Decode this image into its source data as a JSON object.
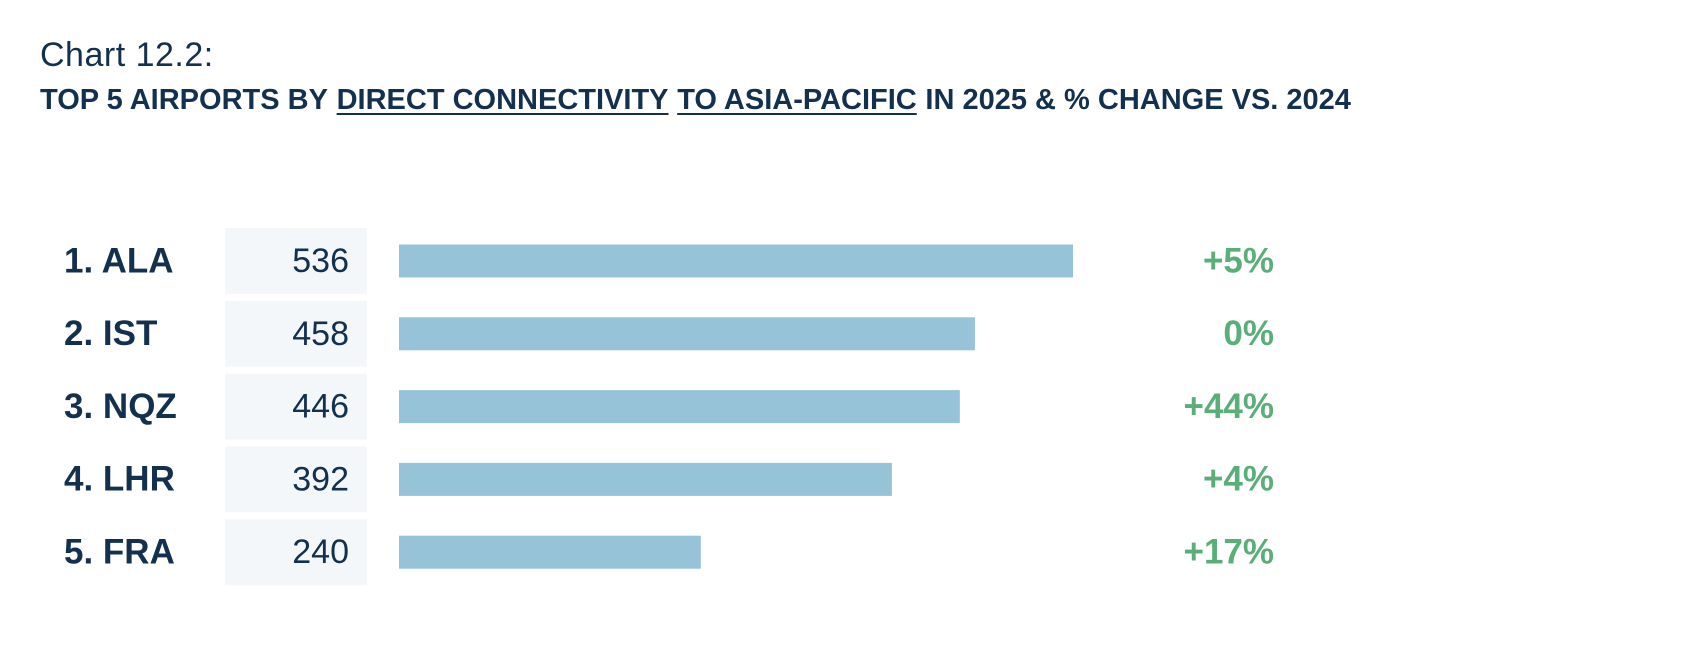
{
  "chart_data": {
    "type": "bar",
    "label": "Chart 12.2:",
    "title": [
      {
        "text": "TOP 5 AIRPORTS BY"
      },
      {
        "text": "DIRECT CONNECTIVITY",
        "underline": true
      },
      {
        "text": "TO ASIA-PACIFIC",
        "underline": true
      },
      {
        "text": "IN 2025 & % CHANGE VS. 2024"
      }
    ],
    "categories": [
      "1. ALA",
      "2. IST",
      "3. NQZ",
      "4. LHR",
      "5. FRA"
    ],
    "values": [
      536,
      458,
      446,
      392,
      240
    ],
    "color": "#97c3d9",
    "change": {
      "values": [
        5,
        0,
        44,
        4,
        17
      ],
      "value_labels": [
        "+5%",
        "0%",
        "+44%",
        "+4%",
        "+17%"
      ],
      "color": "#5aaf78"
    }
  }
}
